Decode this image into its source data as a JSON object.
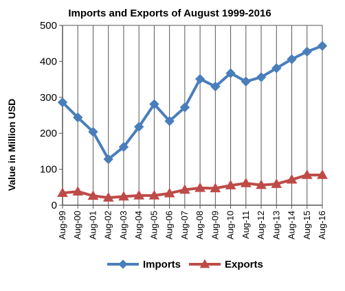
{
  "chart_data": {
    "type": "line",
    "title": "Imports and Exports of August 1999-2016",
    "ylabel": "Value in  Million  USD",
    "xlabel": "",
    "ylim": [
      0,
      500
    ],
    "yticks": [
      0,
      100,
      200,
      300,
      400,
      500
    ],
    "categories": [
      "Aug-99",
      "Aug-00",
      "Aug-01",
      "Aug-02",
      "Aug-03",
      "Aug-04",
      "Aug-05",
      "Aug-06",
      "Aug-07",
      "Aug-08",
      "Aug-09",
      "Aug-10",
      "Aug-11",
      "Aug-12",
      "Aug-13",
      "Aug-14",
      "Aug-15",
      "Aug-16"
    ],
    "grid": "vertical",
    "legend_position": "bottom",
    "series": [
      {
        "name": "Imports",
        "color": "#4a7ebb",
        "marker": "diamond",
        "values": [
          286,
          244,
          204,
          128,
          162,
          218,
          281,
          234,
          272,
          351,
          330,
          367,
          344,
          356,
          381,
          406,
          427,
          443
        ]
      },
      {
        "name": "Exports",
        "color": "#be4b48",
        "marker": "triangle",
        "values": [
          34,
          38,
          26,
          21,
          24,
          27,
          27,
          33,
          43,
          48,
          47,
          55,
          61,
          56,
          59,
          71,
          84,
          84
        ]
      }
    ]
  }
}
